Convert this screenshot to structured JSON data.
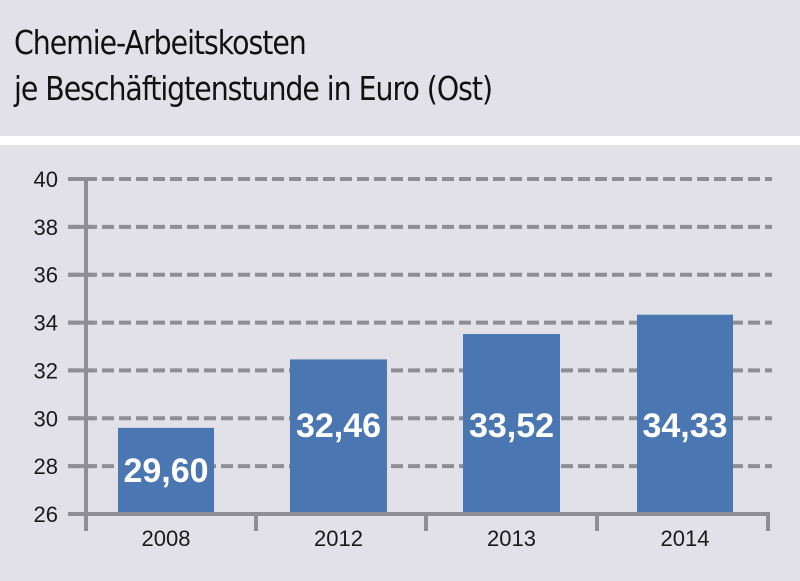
{
  "header": {
    "title_line1": "Chemie-Arbeitskosten",
    "title_line2": "je Beschäftigtenstunde in Euro (Ost)"
  },
  "colors": {
    "background": "#e2e1e7",
    "bar": "#4a76b2",
    "grid": "#8f8f93",
    "band": "#ffffff"
  },
  "chart_data": {
    "type": "bar",
    "title": "Chemie-Arbeitskosten je Beschäftigtenstunde in Euro (Ost)",
    "xlabel": "",
    "ylabel": "",
    "categories": [
      "2008",
      "2012",
      "2013",
      "2014"
    ],
    "values": [
      29.6,
      32.46,
      33.52,
      34.33
    ],
    "value_labels": [
      "29,60",
      "32,46",
      "33,52",
      "34,33"
    ],
    "ylim": [
      26,
      40
    ],
    "yticks": [
      26,
      28,
      30,
      32,
      34,
      36,
      38,
      40
    ],
    "ytick_labels": [
      "26",
      "28",
      "30",
      "32",
      "34",
      "36",
      "38",
      "40"
    ],
    "grid": "dashed horizontal",
    "legend": "none"
  }
}
